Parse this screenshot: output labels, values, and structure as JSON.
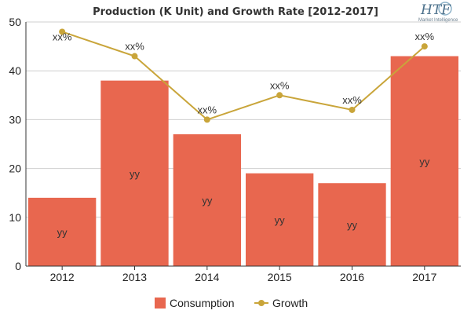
{
  "logo": {
    "text": "HTF",
    "subtext": "Market Intelligence"
  },
  "chart_data": {
    "type": "bar",
    "title": "Production (K Unit) and Growth Rate [2012-2017]",
    "categories": [
      "2012",
      "2013",
      "2014",
      "2015",
      "2016",
      "2017"
    ],
    "xlabel": "",
    "ylabel": "",
    "ylim": [
      0,
      50
    ],
    "yticks": [
      "0",
      "10",
      "20",
      "30",
      "40",
      "50"
    ],
    "grid": true,
    "legend_position": "bottom",
    "series": [
      {
        "name": "Consumption",
        "type": "bar",
        "color": "#e8674f",
        "values": [
          14,
          38,
          27,
          19,
          17,
          43
        ],
        "labels": [
          "yy",
          "yy",
          "yy",
          "yy",
          "yy",
          "yy"
        ]
      },
      {
        "name": "Growth",
        "type": "line",
        "color": "#c9a53a",
        "values": [
          48,
          43,
          30,
          35,
          32,
          45
        ],
        "labels": [
          "xx%",
          "xx%",
          "xx%",
          "xx%",
          "xx%",
          "xx%"
        ]
      }
    ]
  }
}
